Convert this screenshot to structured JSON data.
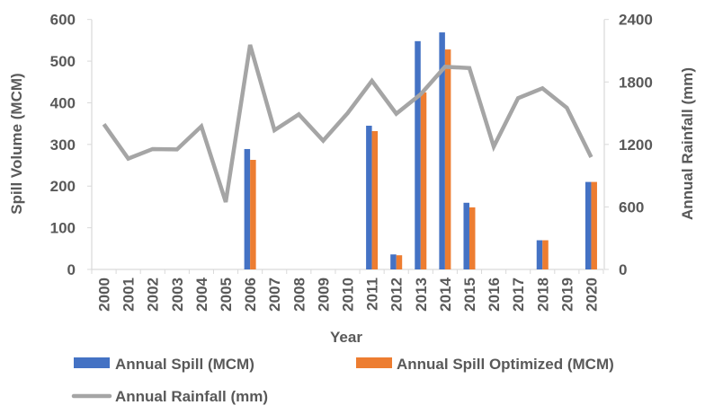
{
  "chart_data": {
    "type": "bar",
    "categories": [
      "2000",
      "2001",
      "2002",
      "2003",
      "2004",
      "2005",
      "2006",
      "2007",
      "2008",
      "2009",
      "2010",
      "2011",
      "2012",
      "2013",
      "2014",
      "2015",
      "2016",
      "2017",
      "2018",
      "2019",
      "2020"
    ],
    "xlabel": "Year",
    "ylabel": "Spill Volume (MCM)",
    "y2label": "Annual Rainfall (mm)",
    "ylim": [
      0,
      600
    ],
    "y2lim": [
      0,
      2400
    ],
    "yticks": [
      "0",
      "100",
      "200",
      "300",
      "400",
      "500",
      "600"
    ],
    "y2ticks": [
      "0",
      "600",
      "1200",
      "1800",
      "2400"
    ],
    "grid": false,
    "legend_position": "bottom",
    "series": [
      {
        "name": "Annual Spill (MCM)",
        "type": "bar",
        "axis": "left",
        "color": "#4472C4",
        "values": [
          0,
          0,
          0,
          0,
          0,
          0,
          289,
          0,
          0,
          0,
          0,
          345,
          36,
          548,
          569,
          160,
          0,
          0,
          70,
          0,
          210
        ]
      },
      {
        "name": "Annual Spill Optimized (MCM)",
        "type": "bar",
        "axis": "left",
        "color": "#ED7D31",
        "values": [
          0,
          0,
          0,
          0,
          0,
          0,
          263,
          0,
          0,
          0,
          0,
          332,
          34,
          425,
          528,
          149,
          0,
          0,
          70,
          0,
          210
        ]
      },
      {
        "name": "Annual Rainfall (mm)",
        "type": "line",
        "axis": "right",
        "color": "#A5A5A5",
        "values": [
          1394,
          1064,
          1156,
          1152,
          1374,
          647,
          2156,
          1337,
          1489,
          1236,
          1500,
          1811,
          1495,
          1682,
          1946,
          1934,
          1179,
          1645,
          1739,
          1552,
          1078
        ]
      }
    ]
  }
}
